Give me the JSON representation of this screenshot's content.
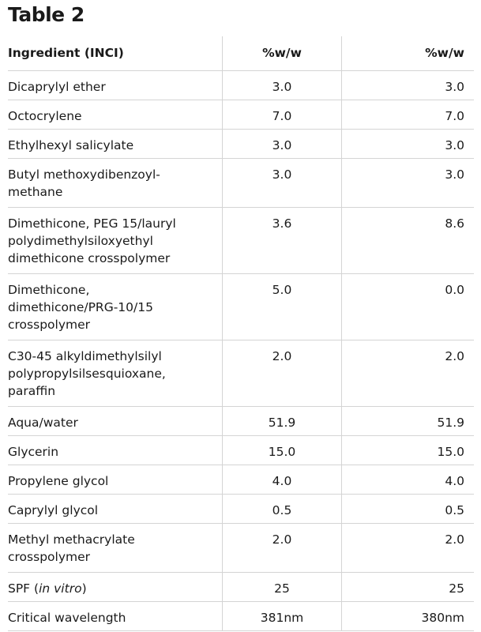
{
  "title": "Table 2",
  "table": {
    "headers": [
      "Ingredient (INCI)",
      "%w/w",
      "%w/w"
    ],
    "rows": [
      {
        "ingredient": [
          "Dicaprylyl ether"
        ],
        "col1": "3.0",
        "col2": "3.0"
      },
      {
        "ingredient": [
          "Octocrylene"
        ],
        "col1": "7.0",
        "col2": "7.0"
      },
      {
        "ingredient": [
          "Ethylhexyl salicylate"
        ],
        "col1": "3.0",
        "col2": "3.0"
      },
      {
        "ingredient": [
          "Butyl methoxydibenzoyl-",
          "methane"
        ],
        "col1": "3.0",
        "col2": "3.0"
      },
      {
        "ingredient": [
          "Dimethicone, PEG 15/lauryl",
          "polydimethylsiloxyethyl",
          "dimethicone crosspolymer"
        ],
        "col1": "3.6",
        "col2": "8.6"
      },
      {
        "ingredient": [
          "Dimethicone,",
          "dimethicone/PRG-10/15",
          "crosspolymer"
        ],
        "col1": "5.0",
        "col2": "0.0"
      },
      {
        "ingredient": [
          "C30-45 alkyldimethylsilyl",
          "polypropylsilsesquioxane,",
          "paraffin"
        ],
        "col1": "2.0",
        "col2": "2.0"
      },
      {
        "ingredient": [
          "Aqua/water"
        ],
        "col1": "51.9",
        "col2": "51.9"
      },
      {
        "ingredient": [
          "Glycerin"
        ],
        "col1": "15.0",
        "col2": "15.0"
      },
      {
        "ingredient": [
          "Propylene glycol"
        ],
        "col1": "4.0",
        "col2": "4.0"
      },
      {
        "ingredient": [
          "Caprylyl glycol"
        ],
        "col1": "0.5",
        "col2": "0.5"
      },
      {
        "ingredient": [
          "Methyl methacrylate",
          "crosspolymer"
        ],
        "col1": "2.0",
        "col2": "2.0"
      },
      {
        "ingredient": [
          "SPF ("
        ],
        "italic": "in vitro",
        "suffix": ")",
        "col1": "25",
        "col2": "25"
      },
      {
        "ingredient": [
          "Critical wavelength"
        ],
        "col1": "381nm",
        "col2": "380nm"
      }
    ]
  }
}
